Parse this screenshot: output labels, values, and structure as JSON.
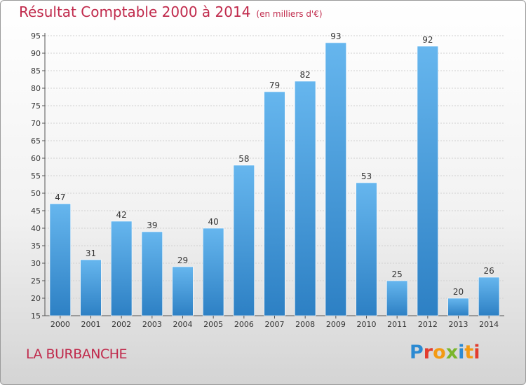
{
  "header": {
    "title": "Résultat Comptable 2000 à 2014",
    "subtitle": "(en milliers d'€)"
  },
  "footer": {
    "commune": "LA BURBANCHE",
    "brand": "Proxiti"
  },
  "colors": {
    "title": "#c0294b",
    "bar_light": "#66b6ee",
    "bar_dark": "#2d80c4",
    "logo_letters": [
      "#2c8ad2",
      "#e23c2e",
      "#f39a13",
      "#7ab62c",
      "#2c8ad2",
      "#f39a13",
      "#e23c2e"
    ]
  },
  "chart_data": {
    "type": "bar",
    "title": "Résultat Comptable 2000 à 2014",
    "xlabel": "",
    "ylabel": "",
    "categories": [
      "2000",
      "2001",
      "2002",
      "2003",
      "2004",
      "2005",
      "2006",
      "2007",
      "2008",
      "2009",
      "2010",
      "2011",
      "2012",
      "2013",
      "2014"
    ],
    "values": [
      47,
      31,
      42,
      39,
      29,
      40,
      58,
      79,
      82,
      93,
      53,
      25,
      92,
      20,
      26
    ],
    "ylim": [
      15,
      95
    ],
    "yticks": [
      15,
      20,
      25,
      30,
      35,
      40,
      45,
      50,
      55,
      60,
      65,
      70,
      75,
      80,
      85,
      90,
      95
    ],
    "grid": true,
    "legend": "none"
  }
}
